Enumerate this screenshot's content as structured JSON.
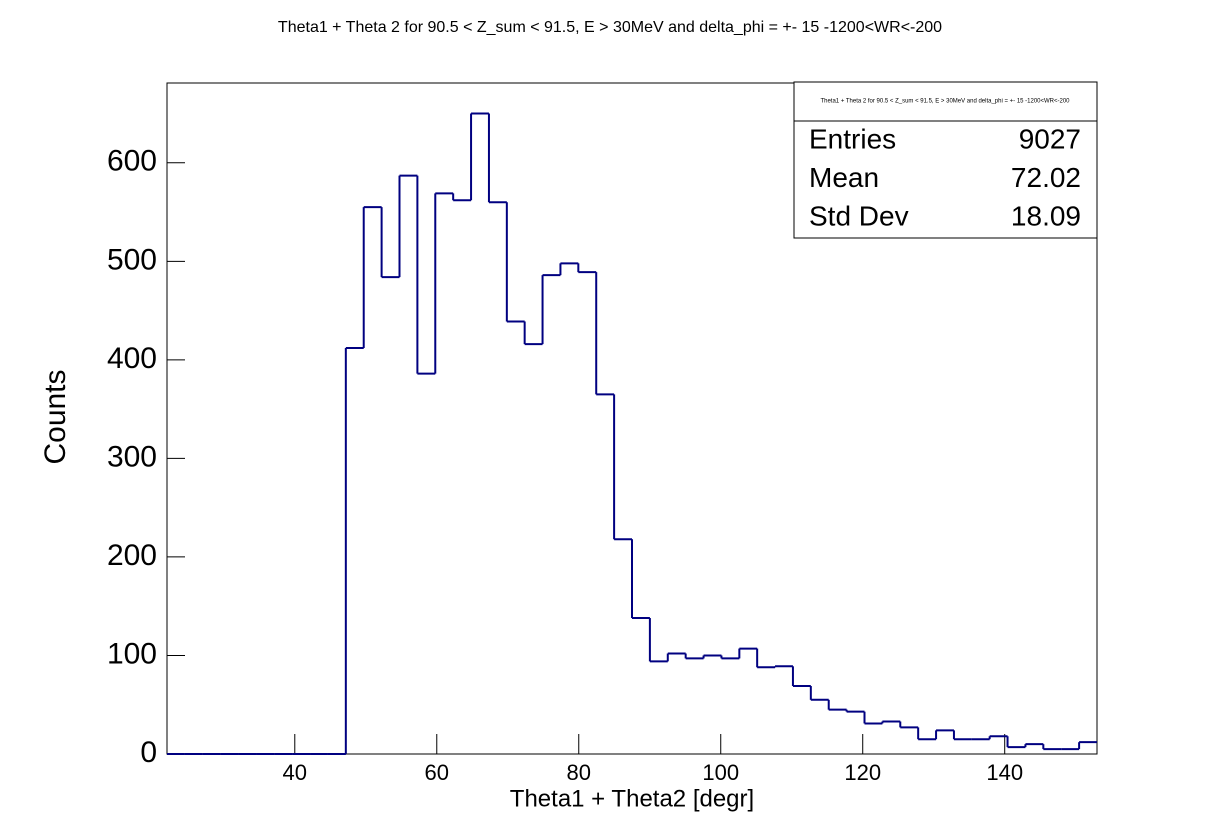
{
  "chart_data": {
    "type": "histogram",
    "title": "Theta1 +  Theta 2 for 90.5 < Z_sum < 91.5, E > 30MeV and delta_phi = +- 15 -1200<WR<-200",
    "x_label": "Theta1 + Theta2 [degr]",
    "y_label": "Counts",
    "color": "#000080",
    "bins": [
      22,
      24.52,
      27.04,
      29.56,
      32.08,
      34.6,
      37.12,
      39.63,
      42.15,
      44.67,
      47.19,
      49.71,
      52.23,
      54.75,
      57.27,
      59.79,
      62.31,
      64.83,
      67.35,
      69.87,
      72.38,
      74.9,
      77.42,
      79.94,
      82.46,
      84.98,
      87.5,
      90.02,
      92.54,
      95.06,
      97.58,
      100.1,
      102.62,
      105.13,
      107.65,
      110.17,
      112.69,
      115.21,
      117.73,
      120.25,
      122.77,
      125.29,
      127.81,
      130.33,
      132.85,
      135.37,
      137.88,
      140.4,
      142.92,
      145.44,
      147.96,
      150.48,
      153
    ],
    "values": [
      0,
      0,
      0,
      0,
      0,
      0,
      0,
      0,
      0,
      0,
      412,
      555,
      484,
      587,
      386,
      569,
      562,
      650,
      560,
      439,
      416,
      486,
      498,
      489,
      365,
      218,
      138,
      94,
      102,
      97,
      100,
      97,
      107,
      88,
      89,
      69,
      55,
      45,
      43,
      31,
      33,
      27,
      15,
      24,
      15,
      15,
      18,
      7,
      10,
      5,
      5,
      12
    ],
    "xlim": [
      22,
      153
    ],
    "ylim": [
      0,
      681
    ],
    "xticks": [
      40,
      60,
      80,
      100,
      120,
      140
    ],
    "yticks": [
      0,
      100,
      200,
      300,
      400,
      500,
      600
    ],
    "stats": {
      "title": "Theta1 +  Theta 2 for 90.5 < Z_sum < 91.5, E > 30MeV and delta_phi = +- 15 -1200<WR<-200",
      "rows": [
        [
          "Entries",
          "9027"
        ],
        [
          "Mean",
          "72.02"
        ],
        [
          "Std Dev",
          "18.09"
        ]
      ]
    }
  }
}
